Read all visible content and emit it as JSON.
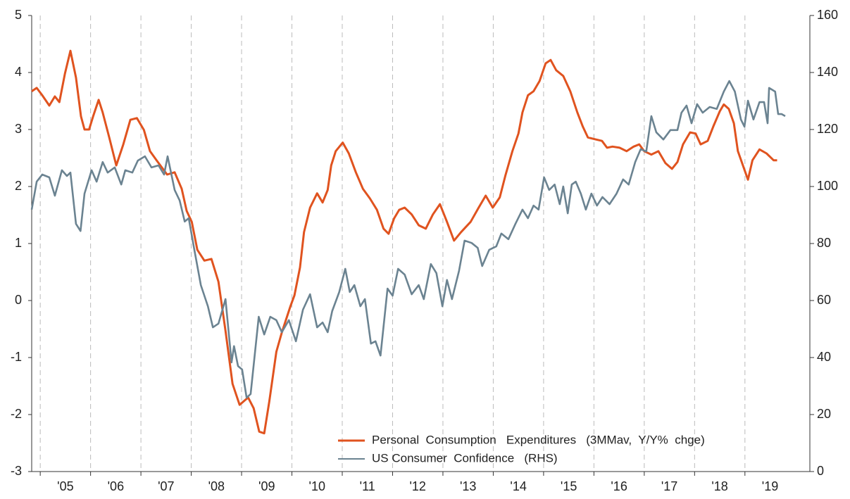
{
  "chart_data": {
    "type": "line",
    "xlim": [
      2004.83,
      2020.29
    ],
    "xticks": [
      {
        "value": 2005,
        "label": "'05"
      },
      {
        "value": 2006,
        "label": "'06"
      },
      {
        "value": 2007,
        "label": "'07"
      },
      {
        "value": 2008,
        "label": "'08"
      },
      {
        "value": 2009,
        "label": "'09"
      },
      {
        "value": 2010,
        "label": "'10"
      },
      {
        "value": 2011,
        "label": "'11"
      },
      {
        "value": 2012,
        "label": "'12"
      },
      {
        "value": 2013,
        "label": "'13"
      },
      {
        "value": 2014,
        "label": "'14"
      },
      {
        "value": 2015,
        "label": "'15"
      },
      {
        "value": 2016,
        "label": "'16"
      },
      {
        "value": 2017,
        "label": "'17"
      },
      {
        "value": 2018,
        "label": "'18"
      },
      {
        "value": 2019,
        "label": "'19"
      }
    ],
    "ylim": [
      -3,
      5
    ],
    "yticks": [
      -3,
      -2,
      -1,
      0,
      1,
      2,
      3,
      4,
      5
    ],
    "y2lim": [
      0,
      160
    ],
    "y2ticks": [
      0,
      20,
      40,
      60,
      80,
      100,
      120,
      140,
      160
    ],
    "grid": true,
    "legend": "lower right",
    "series": [
      {
        "name": "Personal  Consumption   Expenditures   (3MMav,  Y/Y%  chge)",
        "color": "#e0531f",
        "axis": "y",
        "x": [
          2004.83,
          2004.93,
          2005.04,
          2005.18,
          2005.29,
          2005.38,
          2005.49,
          2005.6,
          2005.71,
          2005.81,
          2005.88,
          2005.97,
          2006.05,
          2006.16,
          2006.24,
          2006.37,
          2006.51,
          2006.65,
          2006.79,
          2006.92,
          2007.06,
          2007.18,
          2007.31,
          2007.52,
          2007.67,
          2007.81,
          2007.91,
          2008.01,
          2008.12,
          2008.26,
          2008.4,
          2008.54,
          2008.68,
          2008.82,
          2008.96,
          2009.13,
          2009.24,
          2009.35,
          2009.45,
          2009.55,
          2009.69,
          2009.8,
          2009.97,
          2010.05,
          2010.16,
          2010.24,
          2010.36,
          2010.5,
          2010.61,
          2010.71,
          2010.78,
          2010.87,
          2011.01,
          2011.13,
          2011.27,
          2011.41,
          2011.55,
          2011.69,
          2011.82,
          2011.92,
          2012.03,
          2012.13,
          2012.24,
          2012.38,
          2012.52,
          2012.66,
          2012.8,
          2012.94,
          2013.08,
          2013.22,
          2013.36,
          2013.55,
          2013.71,
          2013.85,
          2013.99,
          2014.13,
          2014.24,
          2014.38,
          2014.5,
          2014.58,
          2014.69,
          2014.8,
          2014.92,
          2015.04,
          2015.14,
          2015.25,
          2015.39,
          2015.53,
          2015.67,
          2015.78,
          2015.88,
          2016.02,
          2016.16,
          2016.26,
          2016.37,
          2016.51,
          2016.65,
          2016.79,
          2016.9,
          2017.0,
          2017.14,
          2017.28,
          2017.42,
          2017.55,
          2017.66,
          2017.77,
          2017.91,
          2018.02,
          2018.12,
          2018.26,
          2018.37,
          2018.5,
          2018.58,
          2018.68,
          2018.78,
          2018.86,
          2019.06,
          2019.15,
          2019.29,
          2019.43,
          2019.57,
          2019.64
        ],
        "values": [
          3.67,
          3.73,
          3.6,
          3.42,
          3.58,
          3.48,
          3.98,
          4.38,
          3.91,
          3.23,
          3.0,
          3.0,
          3.23,
          3.52,
          3.3,
          2.86,
          2.37,
          2.74,
          3.17,
          3.2,
          2.99,
          2.62,
          2.46,
          2.21,
          2.25,
          1.96,
          1.57,
          1.38,
          0.89,
          0.7,
          0.73,
          0.33,
          -0.53,
          -1.46,
          -1.83,
          -1.7,
          -1.89,
          -2.3,
          -2.33,
          -1.77,
          -0.9,
          -0.56,
          -0.1,
          0.09,
          0.58,
          1.2,
          1.63,
          1.88,
          1.72,
          1.94,
          2.37,
          2.62,
          2.77,
          2.58,
          2.25,
          1.96,
          1.79,
          1.59,
          1.26,
          1.17,
          1.44,
          1.59,
          1.63,
          1.51,
          1.32,
          1.26,
          1.51,
          1.69,
          1.38,
          1.05,
          1.2,
          1.38,
          1.63,
          1.84,
          1.63,
          1.81,
          2.19,
          2.62,
          2.93,
          3.3,
          3.6,
          3.67,
          3.85,
          4.16,
          4.22,
          4.04,
          3.94,
          3.67,
          3.3,
          3.05,
          2.86,
          2.83,
          2.8,
          2.68,
          2.7,
          2.68,
          2.62,
          2.7,
          2.74,
          2.62,
          2.56,
          2.62,
          2.41,
          2.31,
          2.43,
          2.74,
          2.95,
          2.93,
          2.74,
          2.8,
          3.05,
          3.32,
          3.44,
          3.36,
          3.11,
          2.62,
          2.12,
          2.46,
          2.65,
          2.58,
          2.46,
          2.46
        ]
      },
      {
        "name": "US Consumer  Confidence   (RHS)",
        "color": "#6b8391",
        "axis": "y2",
        "x": [
          2004.83,
          2004.93,
          2005.04,
          2005.18,
          2005.29,
          2005.43,
          2005.53,
          2005.6,
          2005.71,
          2005.8,
          2005.88,
          2006.02,
          2006.12,
          2006.24,
          2006.34,
          2006.48,
          2006.61,
          2006.69,
          2006.83,
          2006.94,
          2007.08,
          2007.21,
          2007.35,
          2007.46,
          2007.53,
          2007.67,
          2007.77,
          2007.87,
          2007.95,
          2008.05,
          2008.19,
          2008.33,
          2008.43,
          2008.54,
          2008.68,
          2008.8,
          2008.85,
          2008.93,
          2009.01,
          2009.1,
          2009.18,
          2009.34,
          2009.45,
          2009.57,
          2009.69,
          2009.8,
          2009.94,
          2010.08,
          2010.22,
          2010.36,
          2010.5,
          2010.61,
          2010.71,
          2010.8,
          2010.94,
          2011.06,
          2011.15,
          2011.24,
          2011.36,
          2011.45,
          2011.57,
          2011.66,
          2011.76,
          2011.9,
          2012.0,
          2012.11,
          2012.24,
          2012.38,
          2012.52,
          2012.62,
          2012.76,
          2012.87,
          2012.99,
          2013.08,
          2013.18,
          2013.32,
          2013.43,
          2013.57,
          2013.69,
          2013.78,
          2013.92,
          2014.06,
          2014.16,
          2014.3,
          2014.44,
          2014.58,
          2014.69,
          2014.8,
          2014.9,
          2015.01,
          2015.11,
          2015.22,
          2015.32,
          2015.39,
          2015.48,
          2015.56,
          2015.64,
          2015.74,
          2015.84,
          2015.95,
          2016.06,
          2016.17,
          2016.31,
          2016.45,
          2016.58,
          2016.69,
          2016.82,
          2016.93,
          2017.04,
          2017.14,
          2017.24,
          2017.38,
          2017.52,
          2017.66,
          2017.74,
          2017.84,
          2017.94,
          2018.05,
          2018.16,
          2018.3,
          2018.44,
          2018.58,
          2018.69,
          2018.8,
          2018.92,
          2018.99,
          2019.06,
          2019.17,
          2019.29,
          2019.38,
          2019.45,
          2019.48,
          2019.6,
          2019.66,
          2019.73,
          2019.8
        ],
        "values": [
          91.9,
          101.7,
          104.2,
          103.2,
          96.8,
          105.7,
          103.7,
          104.9,
          86.9,
          84.4,
          97.5,
          105.7,
          101.7,
          108.6,
          104.9,
          106.7,
          100.7,
          105.7,
          104.9,
          109.1,
          110.6,
          106.7,
          107.4,
          104.2,
          110.6,
          98.8,
          95.1,
          87.7,
          88.9,
          79.0,
          65.4,
          58.0,
          50.6,
          51.9,
          60.5,
          38.3,
          44.0,
          37.0,
          35.8,
          25.9,
          27.2,
          54.3,
          48.1,
          54.3,
          53.1,
          48.9,
          53.1,
          45.7,
          56.8,
          62.2,
          50.6,
          52.3,
          48.9,
          56.3,
          63.0,
          71.1,
          63.0,
          65.4,
          58.0,
          60.5,
          44.9,
          45.7,
          40.7,
          64.2,
          61.7,
          71.1,
          69.1,
          62.2,
          65.4,
          60.5,
          72.8,
          69.6,
          58.0,
          67.2,
          60.5,
          70.4,
          81.0,
          80.2,
          78.5,
          72.1,
          77.8,
          79.0,
          83.5,
          81.5,
          86.9,
          91.9,
          88.9,
          93.3,
          91.9,
          103.2,
          98.8,
          100.7,
          93.8,
          100.0,
          90.6,
          100.7,
          101.7,
          97.5,
          91.9,
          97.5,
          93.3,
          96.3,
          93.8,
          97.5,
          102.5,
          100.7,
          108.6,
          113.1,
          112.3,
          124.7,
          119.0,
          116.5,
          119.8,
          119.8,
          125.9,
          128.4,
          122.2,
          128.9,
          125.9,
          127.9,
          127.2,
          133.3,
          137.0,
          133.3,
          123.5,
          121.0,
          130.1,
          123.5,
          129.6,
          129.6,
          122.2,
          134.6,
          133.3,
          125.4,
          125.4,
          124.7
        ]
      }
    ]
  }
}
